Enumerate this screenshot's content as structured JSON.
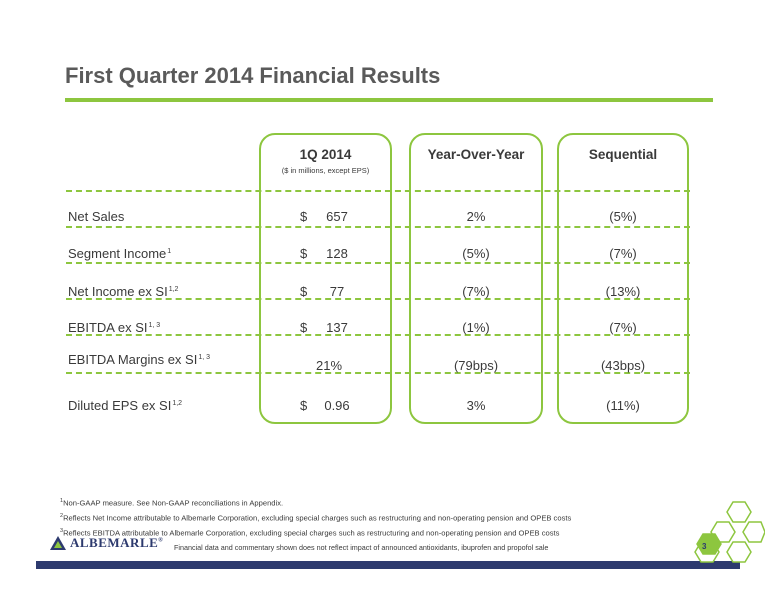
{
  "title": "First Quarter 2014 Financial Results",
  "columns": {
    "c1": {
      "head": "1Q 2014",
      "sub": "($ in millions, except EPS)"
    },
    "c2": {
      "head": "Year-Over-Year"
    },
    "c3": {
      "head": "Sequential"
    }
  },
  "rows": [
    {
      "label": "Net Sales",
      "sup": "",
      "dollar": "$",
      "value": "657",
      "yoy": "2%",
      "seq": "(5%)"
    },
    {
      "label": "Segment Income",
      "sup": "1",
      "dollar": "$",
      "value": "128",
      "yoy": "(5%)",
      "seq": "(7%)"
    },
    {
      "label": "Net Income ex SI",
      "sup": "1,2",
      "dollar": "$",
      "value": "77",
      "yoy": "(7%)",
      "seq": "(13%)"
    },
    {
      "label": "EBITDA ex SI",
      "sup": "1, 3",
      "dollar": "$",
      "value": "137",
      "yoy": "(1%)",
      "seq": "(7%)"
    },
    {
      "label": "EBITDA  Margins ex SI",
      "sup": "1, 3",
      "dollar": "",
      "value": "21%",
      "yoy": "(79bps)",
      "seq": "(43bps)"
    },
    {
      "label": "Diluted EPS ex SI",
      "sup": "1,2",
      "dollar": "$",
      "value": "0.96",
      "yoy": "3%",
      "seq": "(11%)"
    }
  ],
  "footnotes": [
    {
      "num": "1",
      "text": "Non-GAAP measure. See Non-GAAP reconciliations in Appendix."
    },
    {
      "num": "2",
      "text": "Reflects Net Income attributable to Albemarle Corporation, excluding special charges such as restructuring and non-operating pension and OPEB costs"
    },
    {
      "num": "3",
      "text": "Reflects EBITDA attributable to Albemarle Corporation, excluding special charges such as restructuring and non-operating pension and OPEB costs"
    }
  ],
  "logo": {
    "text": "ALBEMARLE",
    "mark": "®"
  },
  "disclaimer": "Financial data and commentary shown does not reflect impact of announced antioxidants, ibuprofen and propofol sale",
  "page_number": "3",
  "colors": {
    "accent_green": "#8dc63f",
    "navy": "#2d3a6e",
    "text": "#3a3a3a"
  }
}
